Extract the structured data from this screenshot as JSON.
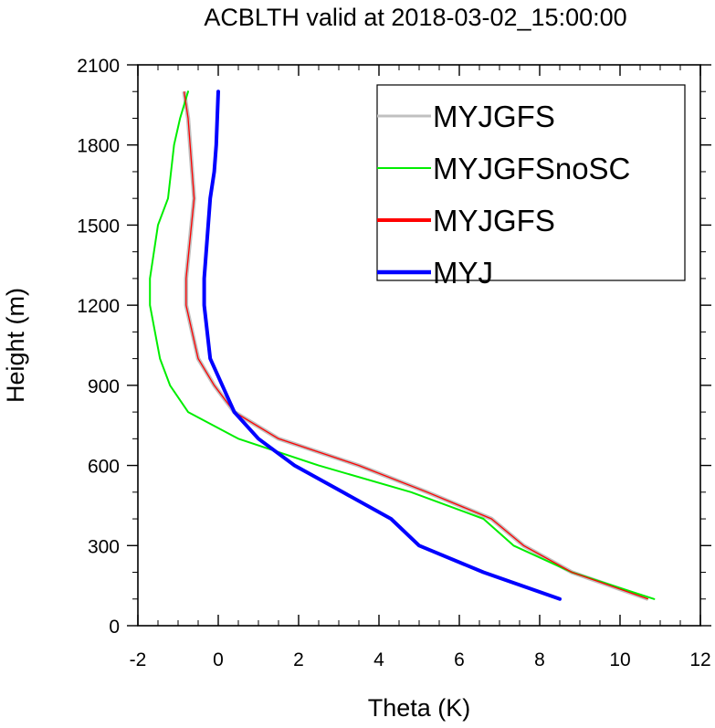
{
  "chart_data": {
    "type": "line",
    "title": "ACBLTH valid at 2018-03-02_15:00:00",
    "xlabel": "Theta (K)",
    "ylabel": "Height (m)",
    "xlim": [
      -2,
      12
    ],
    "ylim": [
      0,
      2100
    ],
    "xticks": [
      -2,
      0,
      2,
      4,
      6,
      8,
      10,
      12
    ],
    "yticks": [
      0,
      300,
      600,
      900,
      1200,
      1500,
      1800,
      2100
    ],
    "xtick_labels": [
      "-2",
      "0",
      "2",
      "4",
      "6",
      "8",
      "10",
      "12"
    ],
    "ytick_labels": [
      "0",
      "300",
      "600",
      "900",
      "1200",
      "1500",
      "1800",
      "2100"
    ],
    "grid": false,
    "legend_position": "top-right",
    "series": [
      {
        "name": "MYJGFS",
        "color": "#c0c0c0",
        "x": [
          10.7,
          8.8,
          7.6,
          6.8,
          5.2,
          3.5,
          1.5,
          0.4,
          -0.1,
          -0.5,
          -0.8,
          -0.8,
          -0.6,
          -0.65,
          -0.7,
          -0.75,
          -0.85
        ],
        "y": [
          100,
          200,
          300,
          400,
          500,
          600,
          700,
          800,
          900,
          1000,
          1200,
          1300,
          1600,
          1700,
          1800,
          1900,
          2000
        ]
      },
      {
        "name": "MYJGFSnoSC",
        "color": "#00ee00",
        "x": [
          10.85,
          8.8,
          7.35,
          6.6,
          4.8,
          2.5,
          0.5,
          -0.75,
          -1.2,
          -1.45,
          -1.7,
          -1.7,
          -1.5,
          -1.25,
          -1.1,
          -0.95,
          -0.75
        ],
        "y": [
          100,
          200,
          300,
          400,
          500,
          600,
          700,
          800,
          900,
          1000,
          1200,
          1300,
          1500,
          1600,
          1800,
          1900,
          2000
        ]
      },
      {
        "name": "MYJGFS",
        "color": "#ff0000",
        "x": [
          10.7,
          8.8,
          7.6,
          6.8,
          5.2,
          3.5,
          1.5,
          0.4,
          -0.1,
          -0.5,
          -0.8,
          -0.8,
          -0.6,
          -0.65,
          -0.7,
          -0.75,
          -0.85
        ],
        "y": [
          100,
          200,
          300,
          400,
          500,
          600,
          700,
          800,
          900,
          1000,
          1200,
          1300,
          1600,
          1700,
          1800,
          1900,
          2000
        ]
      },
      {
        "name": "MYJ",
        "color": "#0000ff",
        "x": [
          8.5,
          6.6,
          5.0,
          4.3,
          3.1,
          1.9,
          1.0,
          0.4,
          -0.2,
          -0.35,
          -0.35,
          -0.2,
          -0.1,
          -0.05,
          0.0
        ],
        "y": [
          100,
          200,
          300,
          400,
          500,
          600,
          700,
          800,
          1000,
          1200,
          1300,
          1600,
          1700,
          1800,
          2000
        ]
      }
    ]
  }
}
